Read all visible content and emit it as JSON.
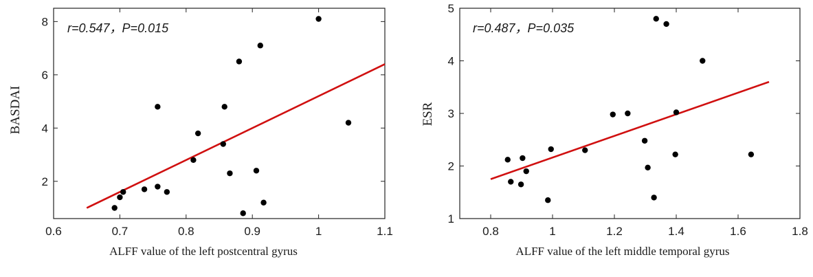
{
  "chart_data": [
    {
      "type": "scatter",
      "annotation": "r=0.547，P=0.015",
      "xlabel": "ALFF value of the left postcentral gyrus",
      "ylabel": "BASDAI",
      "xlim": [
        0.6,
        1.1
      ],
      "ylim": [
        0.6,
        8.5
      ],
      "xticks": [
        0.6,
        0.7,
        0.8,
        0.9,
        1,
        1.1
      ],
      "xtick_labels": [
        "0.6",
        "0.7",
        "0.8",
        "0.9",
        "1",
        "1.1"
      ],
      "yticks": [
        2,
        4,
        6,
        8
      ],
      "ytick_labels": [
        "2",
        "4",
        "6",
        "8"
      ],
      "grid": false,
      "points": [
        {
          "x": 0.692,
          "y": 1.0
        },
        {
          "x": 0.7,
          "y": 1.4
        },
        {
          "x": 0.705,
          "y": 1.6
        },
        {
          "x": 0.737,
          "y": 1.7
        },
        {
          "x": 0.757,
          "y": 1.8
        },
        {
          "x": 0.771,
          "y": 1.6
        },
        {
          "x": 0.757,
          "y": 4.8
        },
        {
          "x": 0.811,
          "y": 2.8
        },
        {
          "x": 0.818,
          "y": 3.8
        },
        {
          "x": 0.856,
          "y": 3.4
        },
        {
          "x": 0.858,
          "y": 4.8
        },
        {
          "x": 0.866,
          "y": 2.3
        },
        {
          "x": 0.88,
          "y": 6.5
        },
        {
          "x": 0.886,
          "y": 0.8
        },
        {
          "x": 0.906,
          "y": 2.4
        },
        {
          "x": 0.912,
          "y": 7.1
        },
        {
          "x": 0.917,
          "y": 1.2
        },
        {
          "x": 1.0,
          "y": 8.1
        },
        {
          "x": 1.045,
          "y": 4.2
        }
      ],
      "fit_line": {
        "x": [
          0.65,
          1.1
        ],
        "y": [
          1.0,
          6.4
        ],
        "color": "#d01010"
      },
      "point_color": "#000000"
    },
    {
      "type": "scatter",
      "annotation": "r=0.487，P=0.035",
      "xlabel": "ALFF value of the left middle temporal gyrus",
      "ylabel": "ESR",
      "xlim": [
        0.7,
        1.8
      ],
      "ylim": [
        1,
        5
      ],
      "xticks": [
        0.8,
        1,
        1.2,
        1.4,
        1.6,
        1.8
      ],
      "xtick_labels": [
        "0.8",
        "1",
        "1.2",
        "1.4",
        "1.6",
        "1.8"
      ],
      "yticks": [
        1,
        2,
        3,
        4,
        5
      ],
      "ytick_labels": [
        "1",
        "2",
        "3",
        "4",
        "5"
      ],
      "grid": false,
      "points": [
        {
          "x": 0.855,
          "y": 2.12
        },
        {
          "x": 0.865,
          "y": 1.7
        },
        {
          "x": 0.898,
          "y": 1.65
        },
        {
          "x": 0.903,
          "y": 2.15
        },
        {
          "x": 0.915,
          "y": 1.9
        },
        {
          "x": 0.985,
          "y": 1.35
        },
        {
          "x": 0.995,
          "y": 2.32
        },
        {
          "x": 1.105,
          "y": 2.3
        },
        {
          "x": 1.195,
          "y": 2.98
        },
        {
          "x": 1.243,
          "y": 3.0
        },
        {
          "x": 1.298,
          "y": 2.48
        },
        {
          "x": 1.308,
          "y": 1.97
        },
        {
          "x": 1.328,
          "y": 1.4
        },
        {
          "x": 1.335,
          "y": 4.8
        },
        {
          "x": 1.368,
          "y": 4.7
        },
        {
          "x": 1.397,
          "y": 2.22
        },
        {
          "x": 1.4,
          "y": 3.02
        },
        {
          "x": 1.485,
          "y": 4.0
        },
        {
          "x": 1.642,
          "y": 2.22
        }
      ],
      "fit_line": {
        "x": [
          0.8,
          1.7
        ],
        "y": [
          1.75,
          3.6
        ],
        "color": "#d01010"
      },
      "point_color": "#000000"
    }
  ]
}
